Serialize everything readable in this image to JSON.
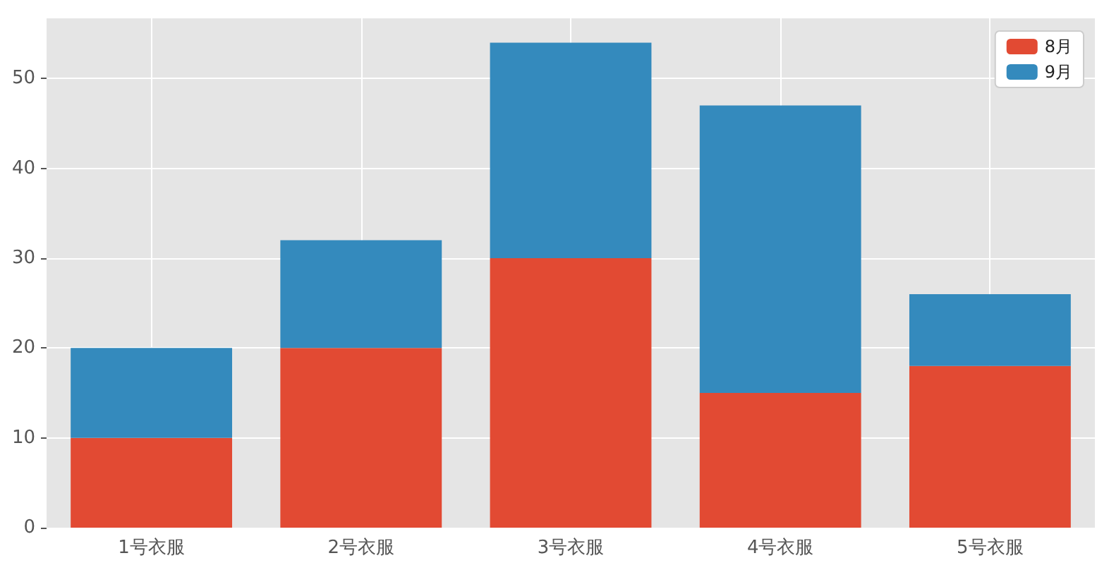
{
  "chart_data": {
    "type": "bar",
    "stacked": true,
    "categories": [
      "1号衣服",
      "2号衣服",
      "3号衣服",
      "4号衣服",
      "5号衣服"
    ],
    "series": [
      {
        "name": "8月",
        "color": "#e24a33",
        "values": [
          10,
          20,
          30,
          15,
          18
        ]
      },
      {
        "name": "9月",
        "color": "#348abd",
        "values": [
          10,
          12,
          24,
          32,
          8
        ]
      }
    ],
    "ylim": [
      0,
      56.7
    ],
    "yticks": [
      0,
      10,
      20,
      30,
      40,
      50
    ],
    "grid": true,
    "legend": "top right"
  }
}
